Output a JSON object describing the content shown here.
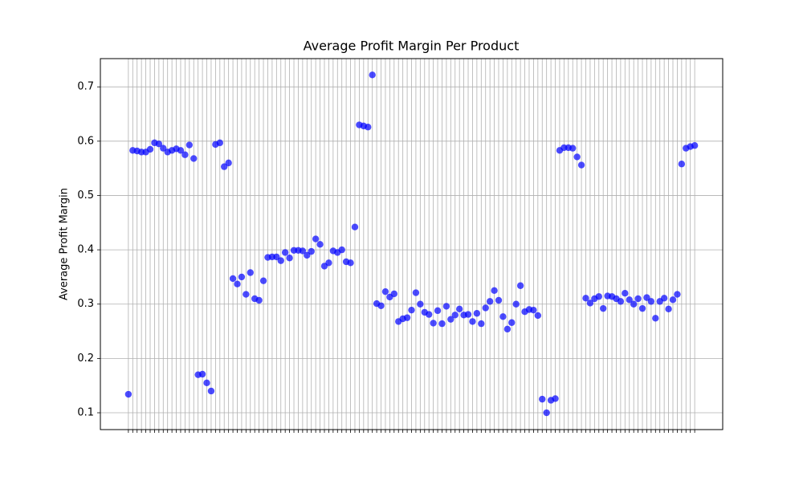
{
  "chart_data": {
    "type": "scatter",
    "title": "Average Profit Margin Per Product",
    "y_label": "Average Profit Margin",
    "categories": [
      null,
      null,
      null,
      null,
      null,
      null,
      null,
      null,
      null,
      null,
      null,
      null,
      null,
      null,
      null,
      null,
      null,
      null,
      null,
      null,
      null,
      null,
      null,
      null,
      null,
      null,
      null,
      null,
      null,
      null,
      null,
      null,
      null,
      null,
      null,
      null,
      null,
      null,
      null,
      null,
      null,
      null,
      null,
      null,
      null,
      null,
      null,
      null,
      null,
      null,
      null,
      null,
      null,
      null,
      null,
      null,
      null,
      null,
      null,
      null,
      null,
      null,
      null,
      null,
      null,
      null,
      null,
      null,
      null,
      null,
      null,
      null,
      null,
      null,
      null,
      null,
      null,
      null,
      null,
      null,
      null,
      null,
      null,
      null,
      null,
      null,
      null,
      null,
      null,
      null,
      null,
      null,
      null,
      null,
      null,
      null,
      null,
      null,
      null,
      null,
      null,
      null,
      null,
      null,
      null,
      null,
      null,
      null,
      null,
      null,
      null,
      null,
      null,
      null,
      null,
      null,
      null,
      null,
      null,
      null,
      null,
      null,
      null,
      null,
      null,
      null,
      null,
      null,
      null,
      null,
      null
    ],
    "values": [
      0.134,
      0.583,
      0.582,
      0.58,
      0.58,
      0.585,
      0.597,
      0.595,
      0.587,
      0.58,
      0.583,
      0.586,
      0.583,
      0.575,
      0.593,
      0.568,
      0.17,
      0.171,
      0.155,
      0.14,
      0.594,
      0.597,
      0.553,
      0.56,
      0.347,
      0.337,
      0.35,
      0.318,
      0.358,
      0.31,
      0.307,
      0.343,
      0.386,
      0.387,
      0.387,
      0.38,
      0.395,
      0.385,
      0.399,
      0.399,
      0.398,
      0.39,
      0.397,
      0.42,
      0.41,
      0.37,
      0.376,
      0.398,
      0.395,
      0.4,
      0.378,
      0.376,
      0.442,
      0.63,
      0.628,
      0.626,
      0.722,
      0.301,
      0.297,
      0.323,
      0.313,
      0.319,
      0.268,
      0.273,
      0.275,
      0.289,
      0.321,
      0.3,
      0.285,
      0.281,
      0.265,
      0.288,
      0.264,
      0.296,
      0.272,
      0.28,
      0.291,
      0.28,
      0.281,
      0.268,
      0.283,
      0.264,
      0.293,
      0.305,
      0.325,
      0.307,
      0.277,
      0.254,
      0.266,
      0.3,
      0.334,
      0.286,
      0.29,
      0.289,
      0.279,
      0.125,
      0.1,
      0.123,
      0.126,
      0.583,
      0.588,
      0.588,
      0.587,
      0.571,
      0.556,
      0.311,
      0.302,
      0.31,
      0.314,
      0.292,
      0.315,
      0.314,
      0.31,
      0.305,
      0.32,
      0.308,
      0.3,
      0.31,
      0.292,
      0.312,
      0.305,
      0.274,
      0.305,
      0.311,
      0.291,
      0.308,
      0.318,
      0.558,
      0.587,
      0.59,
      0.592
    ],
    "color": "#0000ff",
    "ylim": [
      0.069,
      0.752
    ],
    "yticks": [
      0.1,
      0.2,
      0.3,
      0.4,
      0.5,
      0.6,
      0.7
    ],
    "grid": true
  }
}
